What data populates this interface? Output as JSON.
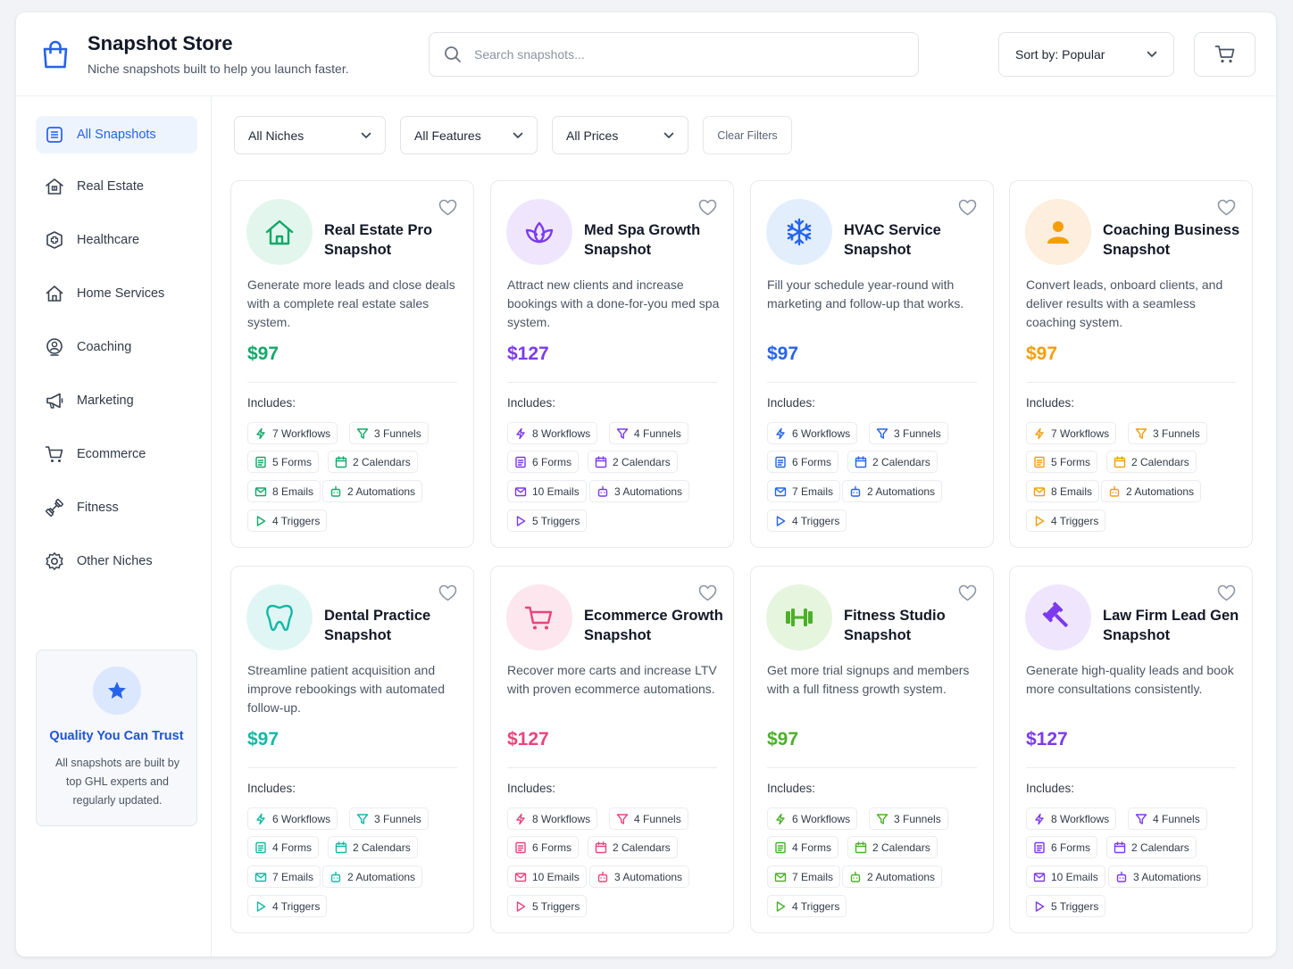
{
  "header": {
    "title": "Snapshot Store",
    "subtitle": "Niche snapshots built to help you launch faster.",
    "search_placeholder": "Search snapshots...",
    "sort_label": "Sort by: Popular",
    "brand_icon": "shopping-bag-icon"
  },
  "sidebar": {
    "items": [
      {
        "label": "All Snapshots",
        "icon": "grid-list-icon",
        "active": true
      },
      {
        "label": "Real Estate",
        "icon": "building-icon"
      },
      {
        "label": "Healthcare",
        "icon": "medical-cross-icon"
      },
      {
        "label": "Home Services",
        "icon": "home-icon"
      },
      {
        "label": "Coaching",
        "icon": "coach-icon"
      },
      {
        "label": "Marketing",
        "icon": "megaphone-icon"
      },
      {
        "label": "Ecommerce",
        "icon": "cart-icon"
      },
      {
        "label": "Fitness",
        "icon": "dumbbell-icon"
      },
      {
        "label": "Other Niches",
        "icon": "cog-icon"
      }
    ],
    "trust": {
      "title": "Quality You Can Trust",
      "text": "All snapshots are built by top GHL experts and regularly updated."
    }
  },
  "filters": {
    "niches": "All Niches",
    "features": "All Features",
    "prices": "All Prices",
    "clear": "Clear Filters"
  },
  "includes_label": "Includes:",
  "cards": [
    {
      "title": "Real Estate Pro Snapshot",
      "desc": "Generate more leads and close deals with a complete real estate sales system.",
      "price": "$97",
      "icon": "house-icon",
      "accent": "#12a86a",
      "tint": "#e2f6ee",
      "chips": {
        "workflows": "7 Workflows",
        "funnels": "3 Funnels",
        "forms": "5 Forms",
        "calendars": "2 Calendars",
        "emails": "8 Emails",
        "automations": "2 Automations",
        "triggers": "4 Triggers"
      }
    },
    {
      "title": "Med Spa Growth Snapshot",
      "desc": "Attract new clients and increase bookings with a done-for-you med spa system.",
      "price": "$127",
      "icon": "lotus-icon",
      "accent": "#7c3aed",
      "tint": "#efe6fd",
      "chips": {
        "workflows": "8 Workflows",
        "funnels": "4 Funnels",
        "forms": "6 Forms",
        "calendars": "2 Calendars",
        "emails": "10 Emails",
        "automations": "3 Automations",
        "triggers": "5 Triggers"
      }
    },
    {
      "title": "HVAC Service Snapshot",
      "desc": "Fill your schedule year-round with marketing and follow-up that works.",
      "price": "$97",
      "icon": "snowflake-icon",
      "accent": "#2563eb",
      "tint": "#e3eefd",
      "chips": {
        "workflows": "6 Workflows",
        "funnels": "3 Funnels",
        "forms": "6 Forms",
        "calendars": "2 Calendars",
        "emails": "7 Emails",
        "automations": "2 Automations",
        "triggers": "4 Triggers"
      }
    },
    {
      "title": "Coaching Business Snapshot",
      "desc": "Convert leads, onboard clients, and deliver results with a seamless coaching system.",
      "price": "$97",
      "icon": "person-icon",
      "accent": "#f59e0b",
      "tint": "#fdeedd",
      "chips": {
        "workflows": "7 Workflows",
        "funnels": "3 Funnels",
        "forms": "5 Forms",
        "calendars": "2 Calendars",
        "emails": "8 Emails",
        "automations": "2 Automations",
        "triggers": "4 Triggers"
      }
    },
    {
      "title": "Dental Practice Snapshot",
      "desc": "Streamline patient acquisition and improve rebookings with automated follow-up.",
      "price": "$97",
      "icon": "tooth-icon",
      "accent": "#14b8a6",
      "tint": "#e0f6f4",
      "chips": {
        "workflows": "6 Workflows",
        "funnels": "3 Funnels",
        "forms": "4 Forms",
        "calendars": "2 Calendars",
        "emails": "7 Emails",
        "automations": "2 Automations",
        "triggers": "4 Triggers"
      }
    },
    {
      "title": "Ecommerce Growth Snapshot",
      "desc": "Recover more carts and increase LTV with proven ecommerce automations.",
      "price": "$127",
      "icon": "shopping-cart-icon",
      "accent": "#e8457a",
      "tint": "#fde6ee",
      "chips": {
        "workflows": "8 Workflows",
        "funnels": "4 Funnels",
        "forms": "6 Forms",
        "calendars": "2 Calendars",
        "emails": "10 Emails",
        "automations": "3 Automations",
        "triggers": "5 Triggers"
      }
    },
    {
      "title": "Fitness Studio Snapshot",
      "desc": "Get more trial signups and members with a full fitness growth system.",
      "price": "$97",
      "icon": "dumbbell-icon",
      "accent": "#4caf2a",
      "tint": "#e6f5de",
      "chips": {
        "workflows": "6 Workflows",
        "funnels": "3 Funnels",
        "forms": "4 Forms",
        "calendars": "2 Calendars",
        "emails": "7 Emails",
        "automations": "2 Automations",
        "triggers": "4 Triggers"
      }
    },
    {
      "title": "Law Firm Lead Gen Snapshot",
      "desc": "Generate high-quality leads and book more consultations consistently.",
      "price": "$127",
      "icon": "gavel-icon",
      "accent": "#7c3aed",
      "tint": "#efe6fd",
      "chips": {
        "workflows": "8 Workflows",
        "funnels": "4 Funnels",
        "forms": "6 Forms",
        "calendars": "2 Calendars",
        "emails": "10 Emails",
        "automations": "3 Automations",
        "triggers": "5 Triggers"
      }
    }
  ]
}
